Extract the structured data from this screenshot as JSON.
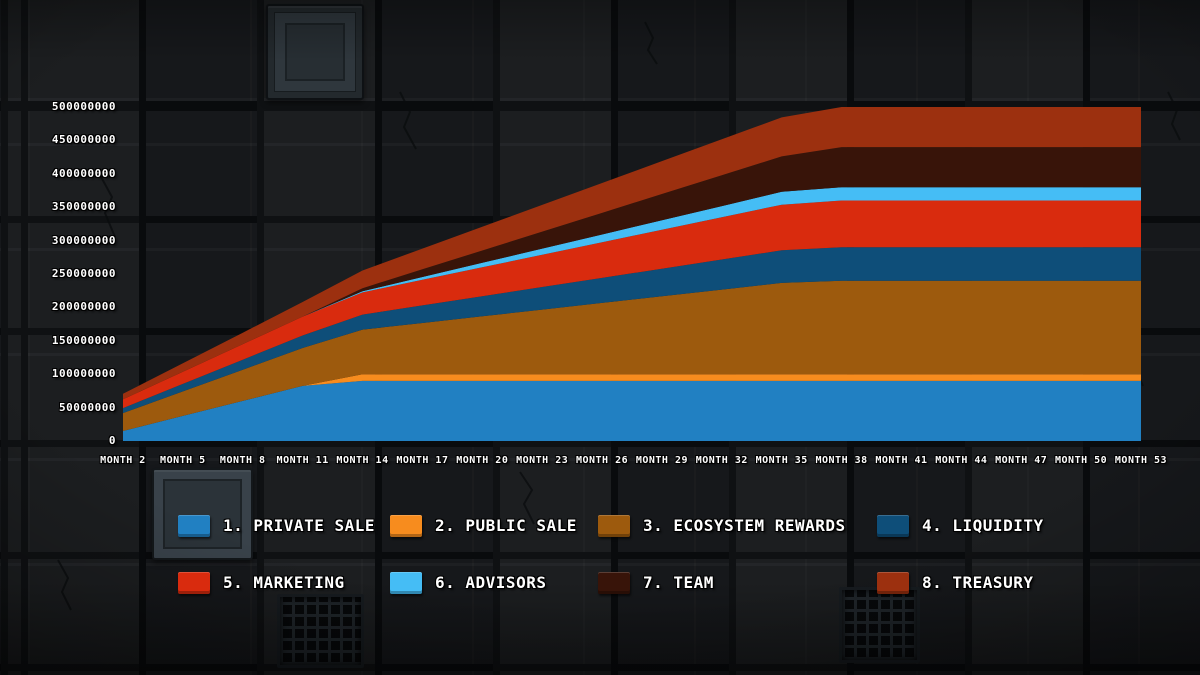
{
  "chart_data": {
    "type": "area",
    "stacked": true,
    "title": "",
    "xlabel": "",
    "ylabel": "",
    "grid": false,
    "legend_position": "bottom",
    "ylim": [
      0,
      500000000
    ],
    "y_ticks": [
      0,
      50000000,
      100000000,
      150000000,
      200000000,
      250000000,
      300000000,
      350000000,
      400000000,
      450000000,
      500000000
    ],
    "y_tick_labels": [
      "0",
      "50000000",
      "100000000",
      "150000000",
      "200000000",
      "250000000",
      "300000000",
      "350000000",
      "400000000",
      "450000000",
      "500000000"
    ],
    "x": [
      2,
      5,
      8,
      11,
      14,
      17,
      20,
      23,
      26,
      29,
      32,
      35,
      38,
      41,
      44,
      47,
      50,
      53
    ],
    "x_tick_labels": [
      "MONTH 2",
      "MONTH 5",
      "MONTH 8",
      "MONTH 11",
      "MONTH 14",
      "MONTH 17",
      "MONTH 20",
      "MONTH 23",
      "MONTH 26",
      "MONTH 29",
      "MONTH 32",
      "MONTH 35",
      "MONTH 38",
      "MONTH 41",
      "MONTH 44",
      "MONTH 47",
      "MONTH 50",
      "MONTH 53"
    ],
    "series": [
      {
        "name": "1. PRIVATE SALE",
        "color": "#2180c2",
        "values": [
          15000000,
          37500000,
          60000000,
          82500000,
          90000000,
          90000000,
          90000000,
          90000000,
          90000000,
          90000000,
          90000000,
          90000000,
          90000000,
          90000000,
          90000000,
          90000000,
          90000000,
          90000000
        ]
      },
      {
        "name": "2. PUBLIC SALE",
        "color": "#f78c1e",
        "values": [
          0,
          0,
          0,
          0,
          10000000,
          10000000,
          10000000,
          10000000,
          10000000,
          10000000,
          10000000,
          10000000,
          10000000,
          10000000,
          10000000,
          10000000,
          10000000,
          10000000
        ]
      },
      {
        "name": "3. ECOSYSTEM REWARDS",
        "color": "#9d5a0d",
        "values": [
          26700000,
          36700000,
          46700000,
          56700000,
          66700000,
          76700000,
          86700000,
          96700000,
          106700000,
          116700000,
          126700000,
          136700000,
          140000000,
          140000000,
          140000000,
          140000000,
          140000000,
          140000000
        ]
      },
      {
        "name": "4. LIQUIDITY",
        "color": "#0e4e79",
        "values": [
          7500000,
          11300000,
          15000000,
          18800000,
          22500000,
          26300000,
          30000000,
          33800000,
          37500000,
          41300000,
          45000000,
          48800000,
          50000000,
          50000000,
          50000000,
          50000000,
          50000000,
          50000000
        ]
      },
      {
        "name": "5. MARKETING",
        "color": "#d92b0e",
        "values": [
          13300000,
          18300000,
          23300000,
          28300000,
          33300000,
          38300000,
          43300000,
          48300000,
          53300000,
          58300000,
          63300000,
          68300000,
          70000000,
          70000000,
          70000000,
          70000000,
          70000000,
          70000000
        ]
      },
      {
        "name": "6. ADVISORS",
        "color": "#45bdf5",
        "values": [
          0,
          0,
          0,
          0,
          1700000,
          4200000,
          6700000,
          9200000,
          11700000,
          14200000,
          16700000,
          19200000,
          20000000,
          20000000,
          20000000,
          20000000,
          20000000,
          20000000
        ]
      },
      {
        "name": "7. TEAM",
        "color": "#381409",
        "values": [
          0,
          0,
          0,
          0,
          4600000,
          11500000,
          18500000,
          25400000,
          32300000,
          39200000,
          46200000,
          53100000,
          60000000,
          60000000,
          60000000,
          60000000,
          60000000,
          60000000
        ]
      },
      {
        "name": "8. TREASURY",
        "color": "#9c300f",
        "values": [
          8100000,
          12600000,
          17200000,
          21800000,
          26400000,
          31000000,
          35600000,
          40100000,
          44700000,
          49300000,
          53900000,
          58400000,
          60000000,
          60000000,
          60000000,
          60000000,
          60000000,
          60000000
        ]
      }
    ]
  },
  "theme": {
    "wall_color": "#17191c",
    "seam_color": "#0a0c0e",
    "text_color": "#ffffff"
  }
}
